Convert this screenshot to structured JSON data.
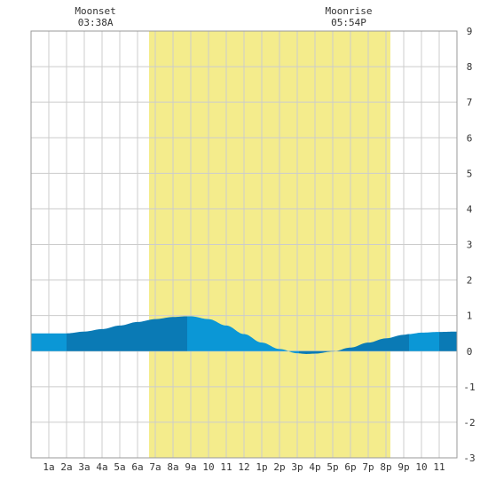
{
  "chart_data": {
    "type": "area",
    "title": "",
    "xlabel": "",
    "ylabel": "",
    "xlim": [
      0,
      24
    ],
    "ylim": [
      -3,
      9
    ],
    "yticks": [
      -3,
      -2,
      -1,
      0,
      1,
      2,
      3,
      4,
      5,
      6,
      7,
      8,
      9
    ],
    "xticks": [
      {
        "x": 1,
        "label": "1a"
      },
      {
        "x": 2,
        "label": "2a"
      },
      {
        "x": 3,
        "label": "3a"
      },
      {
        "x": 4,
        "label": "4a"
      },
      {
        "x": 5,
        "label": "5a"
      },
      {
        "x": 6,
        "label": "6a"
      },
      {
        "x": 7,
        "label": "7a"
      },
      {
        "x": 8,
        "label": "8a"
      },
      {
        "x": 9,
        "label": "9a"
      },
      {
        "x": 10,
        "label": "10"
      },
      {
        "x": 11,
        "label": "11"
      },
      {
        "x": 12,
        "label": "12"
      },
      {
        "x": 13,
        "label": "1p"
      },
      {
        "x": 14,
        "label": "2p"
      },
      {
        "x": 15,
        "label": "3p"
      },
      {
        "x": 16,
        "label": "4p"
      },
      {
        "x": 17,
        "label": "5p"
      },
      {
        "x": 18,
        "label": "6p"
      },
      {
        "x": 19,
        "label": "7p"
      },
      {
        "x": 20,
        "label": "8p"
      },
      {
        "x": 21,
        "label": "9p"
      },
      {
        "x": 22,
        "label": "10"
      },
      {
        "x": 23,
        "label": "11"
      }
    ],
    "grid": true,
    "daylight": [
      6.65,
      20.25
    ],
    "annotations": [
      {
        "x": 3.63,
        "label": "Moonset",
        "time": "03:38A"
      },
      {
        "x": 17.9,
        "label": "Moonrise",
        "time": "05:54P"
      }
    ],
    "segments": [
      [
        0,
        2
      ],
      [
        2,
        8.8
      ],
      [
        8.8,
        15.1
      ],
      [
        15.1,
        21.3
      ],
      [
        21.3,
        23
      ]
    ],
    "series": [
      {
        "x": [
          0,
          1,
          2,
          3,
          4,
          5,
          6,
          7,
          8,
          8.8,
          9,
          10,
          11,
          12,
          13,
          14,
          15,
          15.5,
          16,
          17,
          18,
          19,
          20,
          21,
          21.3,
          22,
          23,
          24
        ],
        "values": [
          0.5,
          0.5,
          0.5,
          0.55,
          0.62,
          0.72,
          0.82,
          0.9,
          0.96,
          0.98,
          0.98,
          0.9,
          0.72,
          0.48,
          0.24,
          0.06,
          -0.06,
          -0.08,
          -0.07,
          -0.01,
          0.1,
          0.24,
          0.36,
          0.46,
          0.48,
          0.52,
          0.54,
          0.55
        ]
      }
    ],
    "colors": {
      "daylight": "#f4ec8c",
      "grid": "#cccccc",
      "frame": "#999999",
      "tide_light": "#0b97d6",
      "tide_dark": "#0a7ab5"
    }
  }
}
